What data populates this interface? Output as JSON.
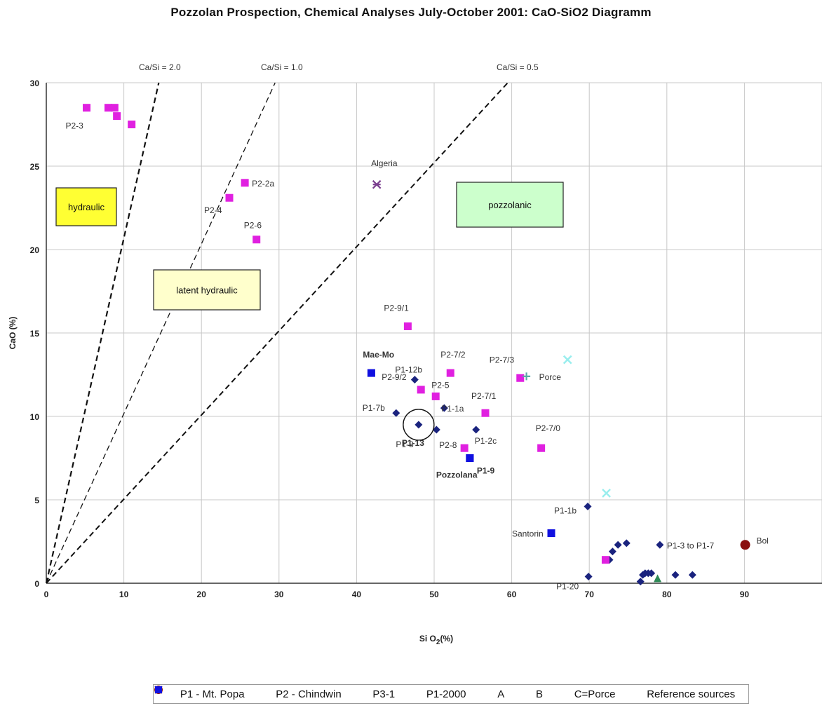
{
  "chart_data": {
    "type": "scatter",
    "title": "Pozzolan Prospection, Chemical Analyses July-October 2001: CaO-SiO2 Diagramm",
    "xlabel": "Si O2(%)",
    "ylabel": "CaO (%)",
    "xlim": [
      0,
      100
    ],
    "ylim": [
      0,
      30
    ],
    "x_ticks": [
      "0",
      "10",
      "20",
      "30",
      "40",
      "50",
      "60",
      "70",
      "80",
      "90"
    ],
    "y_ticks": [
      "0",
      "5",
      "10",
      "15",
      "20",
      "25",
      "30"
    ],
    "grid": true,
    "legend_position": "bottom",
    "ratio_lines": [
      {
        "label": "Ca/Si = 2.0",
        "x_at_top": 14.5
      },
      {
        "label": "Ca/Si = 1.0",
        "x_at_top": 29.5
      },
      {
        "label": "Ca/Si = 0.5",
        "x_at_top": 59.5
      }
    ],
    "regions": [
      {
        "label": "hydraulic",
        "color": "#ffff33"
      },
      {
        "label": "latent hydraulic",
        "color": "#ffffcc"
      },
      {
        "label": "pozzolanic",
        "color": "#ccffcc"
      }
    ],
    "series": [
      {
        "name": "P1 - Mt. Popa",
        "marker": "diamond",
        "color": "#1a237e",
        "points": [
          {
            "x": 47.5,
            "y": 12.2,
            "label": "P1-12b"
          },
          {
            "x": 51.3,
            "y": 10.5,
            "label": "P1-1a"
          },
          {
            "x": 45.1,
            "y": 10.2,
            "label": "P1-7b"
          },
          {
            "x": 48.0,
            "y": 9.5,
            "label": "P1-13"
          },
          {
            "x": 50.3,
            "y": 9.2,
            "label": "P1-8"
          },
          {
            "x": 55.4,
            "y": 9.2,
            "label": "P1-2c"
          },
          {
            "x": 69.8,
            "y": 4.6,
            "label": "P1-1b"
          },
          {
            "x": 69.9,
            "y": 0.4,
            "label": "P1-20"
          },
          {
            "x": 79.1,
            "y": 2.3,
            "label": "P1-3 to P1-7"
          },
          {
            "x": 72.6,
            "y": 1.4,
            "label": ""
          },
          {
            "x": 73.0,
            "y": 1.9,
            "label": ""
          },
          {
            "x": 73.7,
            "y": 2.3,
            "label": ""
          },
          {
            "x": 74.8,
            "y": 2.4,
            "label": ""
          },
          {
            "x": 76.6,
            "y": 0.1,
            "label": ""
          },
          {
            "x": 76.9,
            "y": 0.5,
            "label": ""
          },
          {
            "x": 77.2,
            "y": 0.6,
            "label": ""
          },
          {
            "x": 77.6,
            "y": 0.6,
            "label": ""
          },
          {
            "x": 78.0,
            "y": 0.6,
            "label": ""
          },
          {
            "x": 81.1,
            "y": 0.5,
            "label": ""
          },
          {
            "x": 83.3,
            "y": 0.5,
            "label": ""
          }
        ]
      },
      {
        "name": "P2 - Chindwin",
        "marker": "square",
        "color": "#e020e0",
        "points": [
          {
            "x": 5.2,
            "y": 28.5,
            "label": "P2-3"
          },
          {
            "x": 8.0,
            "y": 28.5,
            "label": ""
          },
          {
            "x": 8.8,
            "y": 28.5,
            "label": ""
          },
          {
            "x": 9.1,
            "y": 28.0,
            "label": ""
          },
          {
            "x": 11.0,
            "y": 27.5,
            "label": ""
          },
          {
            "x": 25.6,
            "y": 24.0,
            "label": "P2-2a"
          },
          {
            "x": 23.6,
            "y": 23.1,
            "label": "P2-4"
          },
          {
            "x": 27.1,
            "y": 20.6,
            "label": "P2-6"
          },
          {
            "x": 46.6,
            "y": 15.4,
            "label": "P2-9/1"
          },
          {
            "x": 52.1,
            "y": 12.6,
            "label": "P2-7/2"
          },
          {
            "x": 61.1,
            "y": 12.3,
            "label": "P2-7/3"
          },
          {
            "x": 48.3,
            "y": 11.6,
            "label": "P2-9/2"
          },
          {
            "x": 50.2,
            "y": 11.2,
            "label": "P2-5"
          },
          {
            "x": 56.6,
            "y": 10.2,
            "label": "P2-7/1"
          },
          {
            "x": 63.8,
            "y": 8.1,
            "label": "P2-7/0"
          },
          {
            "x": 53.9,
            "y": 8.1,
            "label": "P2-8"
          },
          {
            "x": 72.1,
            "y": 1.4,
            "label": ""
          }
        ]
      },
      {
        "name": "P3-1",
        "marker": "triangle",
        "color": "#2e8b57",
        "points": [
          {
            "x": 78.8,
            "y": 0.3,
            "label": ""
          }
        ]
      },
      {
        "name": "P1-2000",
        "marker": "x",
        "color": "#99eeee",
        "points": [
          {
            "x": 67.2,
            "y": 13.4,
            "label": ""
          },
          {
            "x": 72.2,
            "y": 5.4,
            "label": ""
          }
        ]
      },
      {
        "name": "A",
        "marker": "star",
        "color": "#7b3f8f",
        "points": [
          {
            "x": 42.6,
            "y": 23.9,
            "label": "Algeria"
          }
        ]
      },
      {
        "name": "B",
        "marker": "circle",
        "color": "#8b1010",
        "points": [
          {
            "x": 90.1,
            "y": 2.3,
            "label": "Bol"
          }
        ]
      },
      {
        "name": "C=Porce",
        "marker": "plus",
        "color": "#5ca9a6",
        "points": [
          {
            "x": 61.9,
            "y": 12.4,
            "label": "Porce"
          }
        ]
      },
      {
        "name": "Reference sources",
        "marker": "square",
        "color": "#1010e0",
        "points": [
          {
            "x": 41.9,
            "y": 12.6,
            "label": "Mae-Mo"
          },
          {
            "x": 54.6,
            "y": 7.5,
            "label": "Pozzolana"
          },
          {
            "x": 54.6,
            "y": 7.5,
            "label": "P1-9"
          },
          {
            "x": 65.1,
            "y": 3.0,
            "label": "Santorin"
          }
        ]
      }
    ]
  }
}
